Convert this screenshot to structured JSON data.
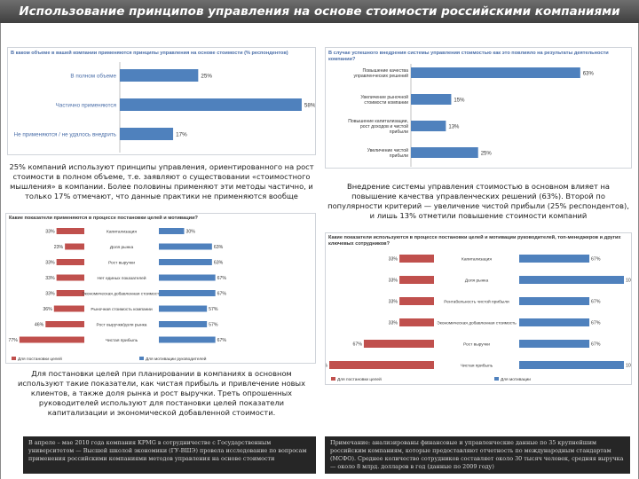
{
  "page": {
    "title": "Использование принципов управления на основе стоимости российскими компаниями"
  },
  "colors": {
    "bar_blue": "#4f81bd",
    "bar_red": "#c0504d",
    "title_blue": "#4a6ea8",
    "dark_bg": "#262626"
  },
  "chart_data": [
    {
      "type": "bar",
      "title": "В каком объеме в вашей компании применяются принципы управления на основе стоимости (% респондентов)",
      "categories": [
        "В полном объеме",
        "Частично применяются",
        "Не применяются / не удалось внедрить"
      ],
      "values": [
        25,
        58,
        17
      ],
      "unit": "%",
      "xlim": [
        0,
        60
      ]
    },
    {
      "type": "bar",
      "title": "В случае успешного внедрения системы управления стоимостью как это повлияло на результаты деятельности компании?",
      "categories": [
        "Повышение качества управленческих решений",
        "Увеличение рыночной стоимости компании",
        "Повышение капитализации, рост доходов и чистой прибыли",
        "Увеличение чистой прибыли"
      ],
      "values": [
        63,
        15,
        13,
        25
      ],
      "unit": "%",
      "xlim": [
        0,
        70
      ]
    },
    {
      "type": "bar",
      "title": "Какие показатели применяются в процессе постановки целей и мотивации?",
      "legend": [
        "Для постановки целей",
        "Для мотивации руководителей"
      ],
      "categories": [
        "Капитализация",
        "Доля рынка",
        "Рост выручки",
        "Нет единых показателей",
        "Экономическая добавленная стоимость",
        "Рыночная стоимость компании",
        "Рост выручки/доля рынка",
        "Чистая прибыль"
      ],
      "series": [
        {
          "name": "Для постановки целей",
          "values": [
            33,
            23,
            33,
            33,
            33,
            36,
            46,
            77
          ]
        },
        {
          "name": "Для мотивации руководителей",
          "values": [
            30,
            63,
            63,
            67,
            67,
            57,
            57,
            67
          ]
        }
      ],
      "unit": "%"
    },
    {
      "type": "bar",
      "title": "Какие показатели используются в процессе постановки целей и мотивации руководителей, топ-менеджеров и других ключевых сотрудников?",
      "legend": [
        "Для постановки целей",
        "Для мотивации"
      ],
      "categories": [
        "Капитализация",
        "Доля рынка",
        "Рентабельность чистой прибыли",
        "Экономическая добавленная стоимость",
        "Рост выручки",
        "Чистая прибыль"
      ],
      "series": [
        {
          "name": "Для постановки целей",
          "values": [
            33,
            33,
            33,
            33,
            67,
            100
          ]
        },
        {
          "name": "Для мотивации",
          "values": [
            67,
            100,
            67,
            67,
            67,
            100
          ]
        }
      ],
      "unit": "%"
    }
  ],
  "captions": {
    "c1": "25% компаний используют принципы управления, ориентированного на рост стоимости в полном объеме, т.е. заявляют о существовании «стоимостного мышления» в компании. Более половины применяют эти методы частично, и только 17% отмечают, что данные практики не применяются вообще",
    "c2": "Внедрение системы управления стоимостью в основном влияет на повышение качества управленческих решений (63%). Второй по популярности критерий — увеличение чистой прибыли (25% респондентов), и лишь 13% отметили повышение стоимости компаний",
    "c3": "Для постановки целей при планировании в компаниях в основном используют такие показатели, как чистая прибыль и привлечение новых клиентов, а также доля рынка и рост выручки. Треть опрошенных руководителей используют для постановки целей показатели капитализации и экономической добавленной стоимости."
  },
  "notes": {
    "left": "В апреле – мае 2010 года компания KPMG в сотрудничестве с Государственным университетом — Высшей школой экономики (ГУ-ВШЭ) провела исследование по вопросам применения российскими компаниями методов управления на основе стоимости",
    "right": "Примечание: анализированы финансовые и управленческие данные по 35 крупнейшим российским компаниям, которые предоставляют отчетность по международным стандартам (МСФО). Среднее количество сотрудников составляет около 30 тысяч человек, средняя выручка — около 8 млрд. долларов в год (данные по 2009 году)"
  }
}
